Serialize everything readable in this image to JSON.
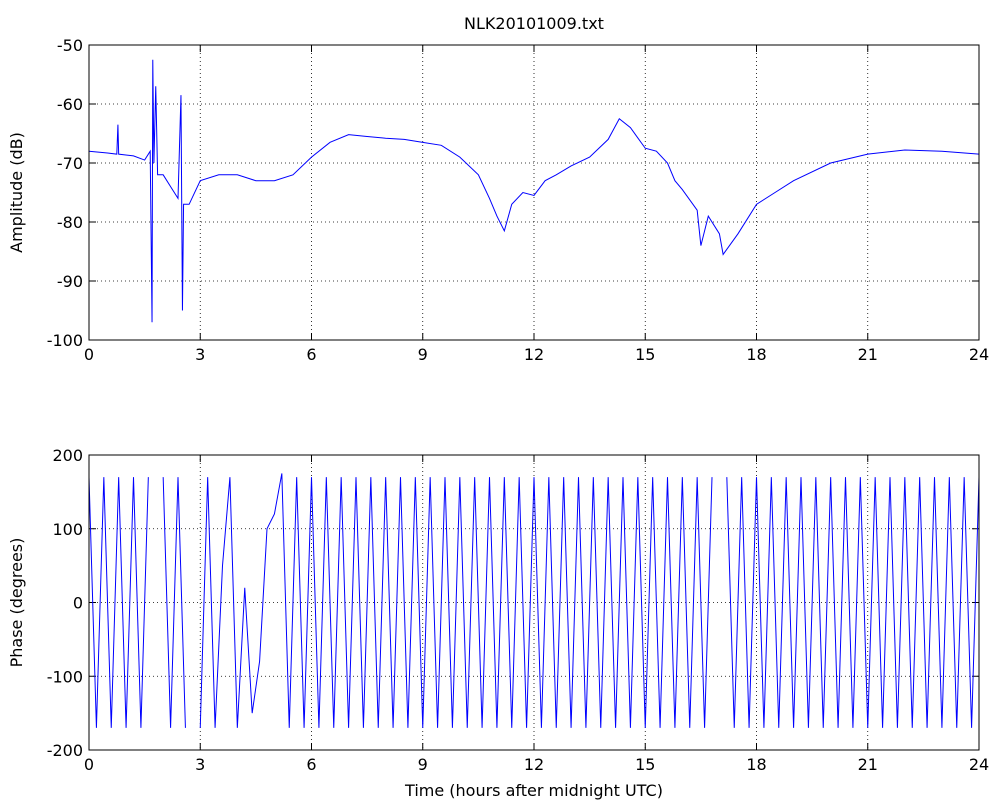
{
  "chart_data": [
    {
      "type": "line",
      "title": "NLK20101009.txt",
      "y_label": "Amplitude (dB)",
      "xlim": [
        0,
        24
      ],
      "xticks": [
        0,
        3,
        6,
        9,
        12,
        15,
        18,
        21,
        24
      ],
      "ylim": [
        -100,
        -50
      ],
      "yticks": [
        -100,
        -90,
        -80,
        -70,
        -60,
        -50
      ],
      "grid": true,
      "series": [
        {
          "color": "#0000ff",
          "x": [
            0,
            0.5,
            0.75,
            0.78,
            0.8,
            1.2,
            1.5,
            1.65,
            1.7,
            1.72,
            1.75,
            1.8,
            1.85,
            2.0,
            2.2,
            2.4,
            2.48,
            2.52,
            2.55,
            2.7,
            3.0,
            3.5,
            4.0,
            4.5,
            5.0,
            5.5,
            6.0,
            6.5,
            7,
            7.5,
            8,
            8.5,
            9,
            9.5,
            10,
            10.5,
            10.8,
            11,
            11.2,
            11.4,
            11.7,
            12,
            12.3,
            12.6,
            13,
            13.5,
            14,
            14.3,
            14.6,
            15,
            15.3,
            15.6,
            15.8,
            16,
            16.4,
            16.5,
            16.7,
            17,
            17.1,
            17.5,
            18,
            18.5,
            19,
            20,
            21,
            22,
            23,
            24
          ],
          "values": [
            -68,
            -68.3,
            -68.5,
            -63.5,
            -68.5,
            -68.8,
            -69.5,
            -68,
            -97,
            -52.5,
            -70,
            -57,
            -72,
            -72,
            -74,
            -76,
            -58.5,
            -95,
            -77,
            -77,
            -73,
            -72,
            -72,
            -73,
            -73,
            -72,
            -69,
            -66.5,
            -65.2,
            -65.5,
            -65.8,
            -66,
            -66.5,
            -67,
            -69,
            -72,
            -76,
            -79,
            -81.5,
            -77,
            -75,
            -75.5,
            -73,
            -72,
            -70.5,
            -69,
            -66,
            -62.5,
            -64,
            -67.5,
            -68,
            -70,
            -73,
            -74.5,
            -78,
            -84,
            -79,
            -82,
            -85.5,
            -82,
            -77,
            -75,
            -73,
            -70,
            -68.5,
            -67.8,
            -68,
            -68.5
          ]
        }
      ]
    },
    {
      "type": "line",
      "x_label": "Time (hours after midnight UTC)",
      "y_label": "Phase (degrees)",
      "xlim": [
        0,
        24
      ],
      "xticks": [
        0,
        3,
        6,
        9,
        12,
        15,
        18,
        21,
        24
      ],
      "ylim": [
        -200,
        200
      ],
      "yticks": [
        -200,
        -100,
        0,
        100,
        200
      ],
      "grid": true,
      "series": [
        {
          "color": "#0000ff",
          "x": [
            0,
            0.2,
            0.4,
            0.6,
            0.8,
            1.0,
            1.2,
            1.4,
            1.6,
            1.8,
            2.0,
            2.2,
            2.4,
            2.6,
            2.8,
            3.0,
            3.2,
            3.4,
            3.6,
            3.8,
            4.0,
            4.2,
            4.4,
            4.6,
            4.8,
            5.0,
            5.2,
            5.4,
            5.6,
            5.8,
            6.0,
            6.2,
            6.4,
            6.6,
            6.8,
            7.0,
            7.2,
            7.4,
            7.6,
            7.8,
            8.0,
            8.2,
            8.4,
            8.6,
            8.8,
            9.0,
            9.2,
            9.4,
            9.6,
            9.8,
            10.0,
            10.2,
            10.4,
            10.6,
            10.8,
            11.0,
            11.2,
            11.4,
            11.6,
            11.8,
            12.0,
            12.2,
            12.4,
            12.6,
            12.8,
            13.0,
            13.2,
            13.4,
            13.6,
            13.8,
            14.0,
            14.2,
            14.4,
            14.6,
            14.8,
            15.0,
            15.2,
            15.4,
            15.6,
            15.8,
            16.0,
            16.2,
            16.4,
            16.6,
            16.8,
            17.0,
            17.2,
            17.4,
            17.6,
            17.8,
            18.0,
            18.2,
            18.4,
            18.6,
            18.8,
            19.0,
            19.2,
            19.4,
            19.6,
            19.8,
            20.0,
            20.2,
            20.4,
            20.6,
            20.8,
            21.0,
            21.2,
            21.4,
            21.6,
            21.8,
            22.0,
            22.2,
            22.4,
            22.6,
            22.8,
            23.0,
            23.2,
            23.4,
            23.6,
            23.8,
            24.0
          ],
          "values": [
            170,
            -170,
            170,
            -170,
            170,
            -170,
            170,
            -170,
            170,
            null,
            170,
            -170,
            170,
            -170,
            null,
            -170,
            170,
            -170,
            50,
            170,
            -170,
            20,
            -150,
            -80,
            100,
            120,
            175,
            -170,
            170,
            -170,
            170,
            -170,
            170,
            -170,
            170,
            -170,
            170,
            -170,
            170,
            -170,
            170,
            -170,
            170,
            -170,
            170,
            -170,
            170,
            -170,
            170,
            -170,
            170,
            -170,
            170,
            -170,
            170,
            -170,
            170,
            -170,
            170,
            -170,
            170,
            -170,
            170,
            -170,
            170,
            -170,
            170,
            -170,
            170,
            -170,
            170,
            -170,
            170,
            -170,
            170,
            -170,
            170,
            -170,
            170,
            -170,
            170,
            -170,
            170,
            -170,
            170,
            null,
            170,
            -170,
            170,
            -170,
            170,
            -170,
            170,
            -170,
            170,
            -170,
            170,
            -170,
            170,
            -170,
            170,
            -170,
            170,
            -170,
            170,
            -170,
            170,
            -170,
            170,
            -170,
            170,
            -170,
            170,
            -170,
            170,
            -170,
            170,
            -170,
            170,
            -170,
            170
          ]
        }
      ]
    }
  ]
}
